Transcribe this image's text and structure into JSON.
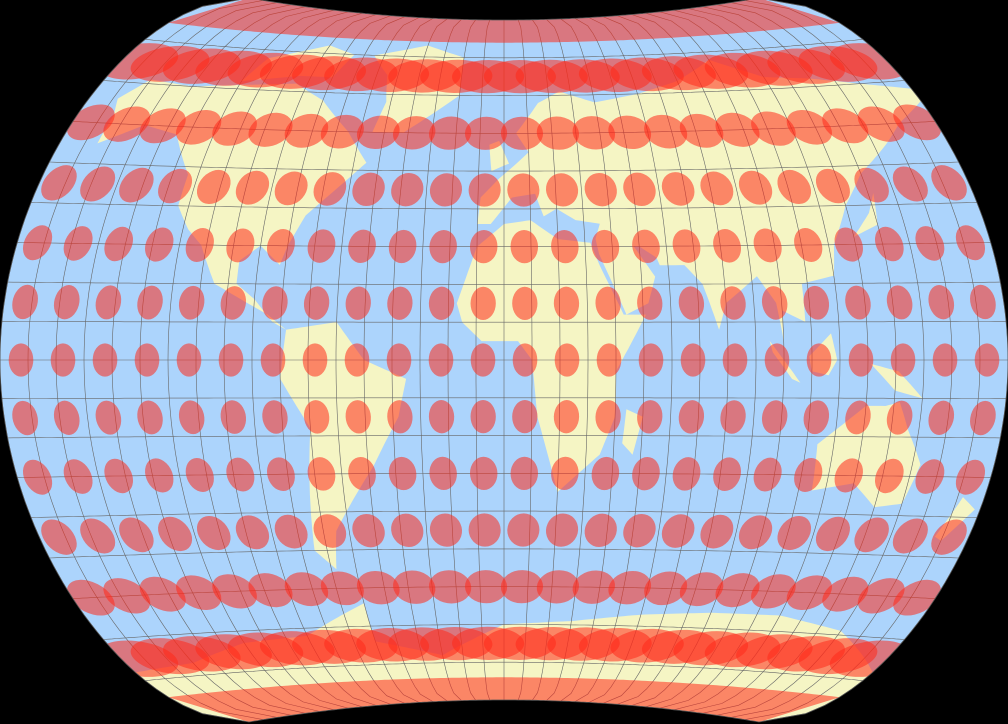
{
  "map": {
    "projection_style": "curved-edge pseudocylindrical world map with Tissot indicatrices",
    "background_color": "#000000",
    "ocean_color": "#acd4fc",
    "land_color": "#f5f5c4",
    "graticule_color": "#666666",
    "indicatrix_color": "#ff2a1a",
    "indicatrix_opacity": 0.55,
    "graticule_step_degrees": 10,
    "indicatrix_step_degrees": 15
  }
}
